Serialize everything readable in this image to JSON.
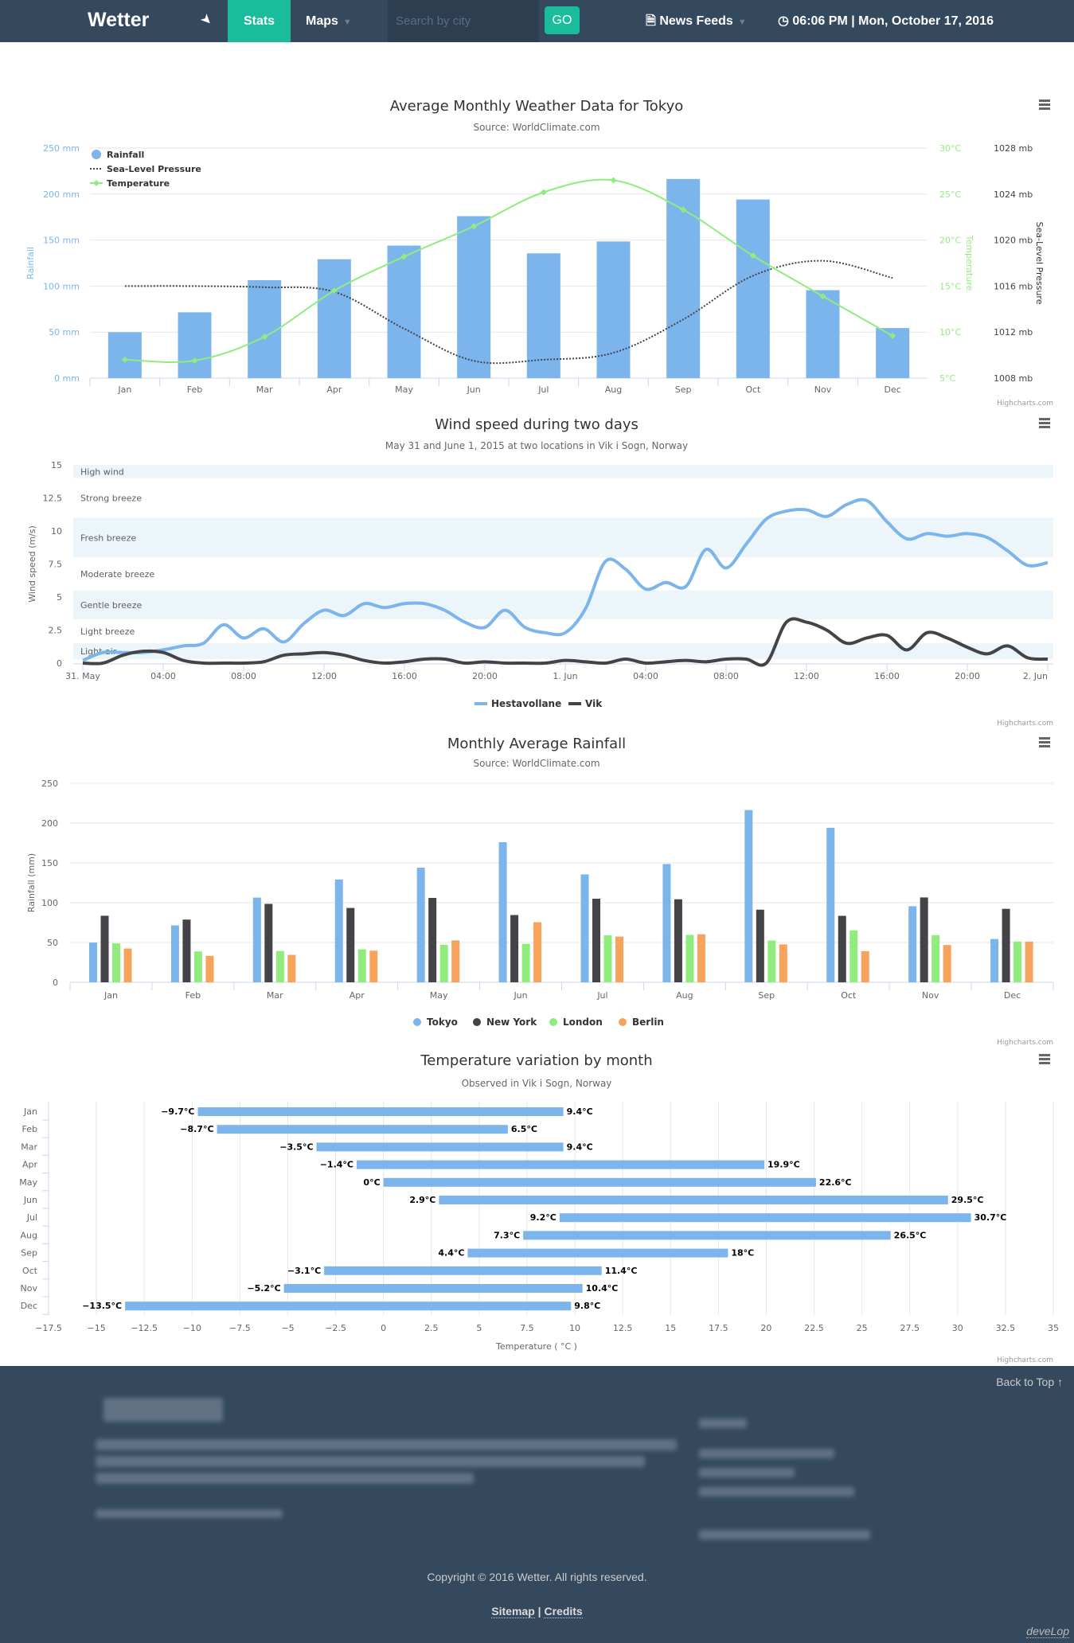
{
  "nav": {
    "brand": "Wetter",
    "locate_icon": "location-arrow",
    "stats": "Stats",
    "maps": "Maps",
    "search_placeholder": "Search by city",
    "go": "GO",
    "news": "News Feeds",
    "news_icon": "file",
    "time_icon": "clock",
    "time": "06:06 PM | Mon, October 17, 2016"
  },
  "colors": {
    "nav": "#34495e",
    "accent": "#1abc9c",
    "blue": "#7cb5ec",
    "dark": "#434348",
    "green": "#90ed7d",
    "orange": "#f7a35c",
    "band": "#ebf5fa"
  },
  "credits": "Highcharts.com",
  "chart_data": [
    {
      "type": "combo",
      "title": "Average Monthly Weather Data for Tokyo",
      "subtitle": "Source: WorldClimate.com",
      "categories": [
        "Jan",
        "Feb",
        "Mar",
        "Apr",
        "May",
        "Jun",
        "Jul",
        "Aug",
        "Sep",
        "Oct",
        "Nov",
        "Dec"
      ],
      "series": [
        {
          "name": "Rainfall",
          "type": "column",
          "values": [
            49.9,
            71.5,
            106.4,
            129.2,
            144.0,
            176.0,
            135.6,
            148.5,
            216.4,
            194.1,
            95.6,
            54.4
          ]
        },
        {
          "name": "Sea-Level Pressure",
          "type": "spline-dotted",
          "values": [
            1016,
            1016,
            1015.9,
            1015.5,
            1012.3,
            1009.5,
            1009.6,
            1010.2,
            1013.1,
            1016.9,
            1018.2,
            1016.7
          ]
        },
        {
          "name": "Temperature",
          "type": "spline",
          "values": [
            7.0,
            6.9,
            9.5,
            14.5,
            18.2,
            21.5,
            25.2,
            26.5,
            23.3,
            18.3,
            13.9,
            9.6
          ]
        }
      ],
      "axes": {
        "rainfall": {
          "title": "Rainfall",
          "range": [
            0,
            250
          ],
          "ticks": [
            "0 mm",
            "50 mm",
            "100 mm",
            "150 mm",
            "200 mm",
            "250 mm"
          ]
        },
        "temperature": {
          "title": "Temperature",
          "range": [
            5,
            30
          ],
          "ticks": [
            "5°C",
            "10°C",
            "15°C",
            "20°C",
            "25°C",
            "30°C"
          ]
        },
        "pressure": {
          "title": "Sea-Level Pressure",
          "range": [
            1008,
            1028
          ],
          "ticks": [
            "1008 mb",
            "1012 mb",
            "1016 mb",
            "1020 mb",
            "1024 mb",
            "1028 mb"
          ]
        }
      },
      "legend": "top-left",
      "grid": true
    },
    {
      "type": "line",
      "title": "Wind speed during two days",
      "subtitle": "May 31 and June 1, 2015 at two locations in Vik i Sogn, Norway",
      "ylabel": "Wind speed (m/s)",
      "ylim": [
        0,
        15
      ],
      "yticks": [
        "0",
        "2.5",
        "5",
        "7.5",
        "10",
        "12.5",
        "15"
      ],
      "xticks": [
        "31. May",
        "04:00",
        "08:00",
        "12:00",
        "16:00",
        "20:00",
        "1. Jun",
        "04:00",
        "08:00",
        "12:00",
        "16:00",
        "20:00",
        "2. Jun"
      ],
      "x_interval": "1 hour from 31. May 00:00",
      "bands": [
        {
          "label": "Light air",
          "from": 0.3,
          "to": 1.5,
          "shaded": true
        },
        {
          "label": "Light breeze",
          "from": 1.5,
          "to": 3.3,
          "shaded": false
        },
        {
          "label": "Gentle breeze",
          "from": 3.3,
          "to": 5.5,
          "shaded": true
        },
        {
          "label": "Moderate breeze",
          "from": 5.5,
          "to": 8,
          "shaded": false
        },
        {
          "label": "Fresh breeze",
          "from": 8,
          "to": 11,
          "shaded": true
        },
        {
          "label": "Strong breeze",
          "from": 11,
          "to": 14,
          "shaded": false
        },
        {
          "label": "High wind",
          "from": 14,
          "to": 15,
          "shaded": true
        }
      ],
      "series": [
        {
          "name": "Hestavollane",
          "values": [
            0.2,
            0.8,
            0.8,
            0.8,
            1,
            1.3,
            1.5,
            2.9,
            1.9,
            2.6,
            1.6,
            3,
            4,
            3.6,
            4.5,
            4.2,
            4.5,
            4.5,
            4,
            3.1,
            2.7,
            4,
            2.7,
            2.3,
            2.3,
            4.1,
            7.7,
            7.1,
            5.6,
            6.1,
            5.8,
            8.6,
            7.2,
            9,
            10.9,
            11.5,
            11.6,
            11.1,
            12,
            12.3,
            10.7,
            9.4,
            9.8,
            9.6,
            9.8,
            9.5,
            8.5,
            7.4,
            7.6
          ]
        },
        {
          "name": "Vik",
          "values": [
            0,
            0,
            0.6,
            0.9,
            0.8,
            0.2,
            0,
            0,
            0,
            0.1,
            0.6,
            0.7,
            0.8,
            0.6,
            0.2,
            0,
            0.1,
            0.3,
            0.3,
            0,
            0.1,
            0,
            0,
            0,
            0.2,
            0.1,
            0,
            0.3,
            0,
            0.1,
            0.2,
            0.1,
            0.3,
            0.3,
            0,
            3.1,
            3.1,
            2.5,
            1.5,
            1.9,
            2.1,
            1,
            2.3,
            1.9,
            1.2,
            0.7,
            1.3,
            0.4,
            0.3
          ]
        }
      ],
      "legend": "bottom-center"
    },
    {
      "type": "bar",
      "title": "Monthly Average Rainfall",
      "subtitle": "Source: WorldClimate.com",
      "ylabel": "Rainfall (mm)",
      "ylim": [
        0,
        250
      ],
      "yticks": [
        "0",
        "50",
        "100",
        "150",
        "200",
        "250"
      ],
      "categories": [
        "Jan",
        "Feb",
        "Mar",
        "Apr",
        "May",
        "Jun",
        "Jul",
        "Aug",
        "Sep",
        "Oct",
        "Nov",
        "Dec"
      ],
      "series": [
        {
          "name": "Tokyo",
          "values": [
            49.9,
            71.5,
            106.4,
            129.2,
            144.0,
            176.0,
            135.6,
            148.5,
            216.4,
            194.1,
            95.6,
            54.4
          ]
        },
        {
          "name": "New York",
          "values": [
            83.6,
            78.8,
            98.5,
            93.4,
            106.0,
            84.5,
            105.0,
            104.3,
            91.2,
            83.5,
            106.6,
            92.3
          ]
        },
        {
          "name": "London",
          "values": [
            48.9,
            38.8,
            39.3,
            41.4,
            47.0,
            48.3,
            59.0,
            59.6,
            52.4,
            65.2,
            59.3,
            51.2
          ]
        },
        {
          "name": "Berlin",
          "values": [
            42.4,
            33.2,
            34.5,
            39.7,
            52.6,
            75.5,
            57.4,
            60.4,
            47.6,
            39.1,
            46.8,
            51.1
          ]
        }
      ],
      "legend": "bottom-center",
      "grid": true
    },
    {
      "type": "columnrange-horizontal",
      "title": "Temperature variation by month",
      "subtitle": "Observed in Vik i Sogn, Norway",
      "xlabel": "Temperature ( °C )",
      "xlim": [
        -17.5,
        35
      ],
      "xticks": [
        "−17.5",
        "−15",
        "−12.5",
        "−10",
        "−7.5",
        "−5",
        "−2.5",
        "0",
        "2.5",
        "5",
        "7.5",
        "10",
        "12.5",
        "15",
        "17.5",
        "20",
        "22.5",
        "25",
        "27.5",
        "30",
        "32.5",
        "35"
      ],
      "categories": [
        "Jan",
        "Feb",
        "Mar",
        "Apr",
        "May",
        "Jun",
        "Jul",
        "Aug",
        "Sep",
        "Oct",
        "Nov",
        "Dec"
      ],
      "low": [
        -9.7,
        -8.7,
        -3.5,
        -1.4,
        0,
        2.9,
        9.2,
        7.3,
        4.4,
        -3.1,
        -5.2,
        -13.5
      ],
      "high": [
        9.4,
        6.5,
        9.4,
        19.9,
        22.6,
        29.5,
        30.7,
        26.5,
        18,
        11.4,
        10.4,
        9.8
      ],
      "low_labels": [
        "−9.7°C",
        "−8.7°C",
        "−3.5°C",
        "−1.4°C",
        "0°C",
        "2.9°C",
        "9.2°C",
        "7.3°C",
        "4.4°C",
        "−3.1°C",
        "−5.2°C",
        "−13.5°C"
      ],
      "high_labels": [
        "9.4°C",
        "6.5°C",
        "9.4°C",
        "19.9°C",
        "22.6°C",
        "29.5°C",
        "30.7°C",
        "26.5°C",
        "18°C",
        "11.4°C",
        "10.4°C",
        "9.8°C"
      ],
      "grid": true
    }
  ],
  "footer": {
    "back_to_top": "Back to Top ↑",
    "copyright": "Copyright © 2016 Wetter. All rights reserved.",
    "sitemap": "Sitemap",
    "credits": "Credits",
    "develop": "deveLop"
  }
}
